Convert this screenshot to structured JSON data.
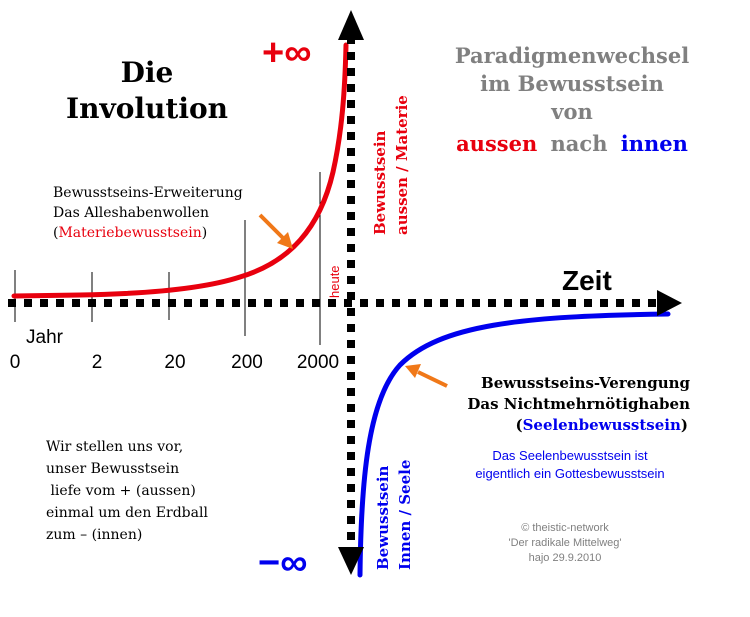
{
  "title": {
    "line1": "Die",
    "line2": "Involution"
  },
  "paradigm": {
    "line1": "Paradigmenwechsel",
    "line2": "im Bewusstsein",
    "line3": "von",
    "word_aussen": "aussen",
    "word_nach": "nach",
    "word_innen": "innen"
  },
  "plus_infinity": "+∞",
  "minus_infinity": "−∞",
  "zeit_label": "Zeit",
  "jahr_label": "Jahr",
  "heute_label": "heute",
  "x_ticks": [
    "0",
    "2",
    "20",
    "200",
    "2000"
  ],
  "axis_upper_label": {
    "line1": "Bewusstsein",
    "line2": "aussen / Materie"
  },
  "axis_lower_label": {
    "line1": "Bewusstsein",
    "line2": "Innen / Seele"
  },
  "upper_note": {
    "line1": "Bewusstseins-Erweiterung",
    "line2": "Das Alleshabenwollen",
    "line3_open": "(",
    "line3_red": "Materiebewusstsein",
    "line3_close": ")"
  },
  "lower_note": {
    "line1": "Bewusstseins-Verengung",
    "line2": "Das Nichtmehrnötighaben",
    "line3_open": "(",
    "line3_blue": "Seelenbewusstsein",
    "line3_close": ")"
  },
  "seelen_note": {
    "line1": "Das Seelenbewusstsein ist",
    "line2": "eigentlich ein Gottesbewusstsein"
  },
  "left_note": {
    "line1": "Wir stellen uns vor,",
    "line2": "unser Bewusstsein",
    "line3": " liefe vom + (aussen)",
    "line4": "einmal um den Erdball",
    "line5": "zum – (innen)"
  },
  "copyright": {
    "line1": "© theistic-network",
    "line2": "'Der radikale Mittelweg'",
    "line3": "hajo 29.9.2010"
  },
  "colors": {
    "red": "#e8000e",
    "blue": "#0000ee",
    "gray": "#808080",
    "orange": "#f07818",
    "black": "#000000"
  }
}
